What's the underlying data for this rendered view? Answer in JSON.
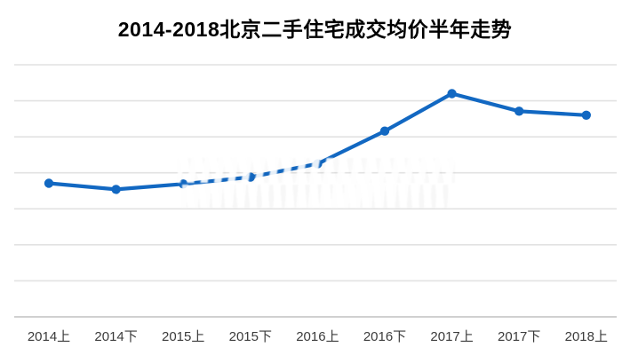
{
  "chart_data": {
    "type": "line",
    "title": "2014-2018北京二手住宅成交均价半年走势",
    "categories": [
      "2014上",
      "2014下",
      "2015上",
      "2015下",
      "2016上",
      "2016下",
      "2017上",
      "2017下",
      "2018上"
    ],
    "series": [
      {
        "name": "",
        "values": [
          3.71,
          3.54,
          3.69,
          3.88,
          4.25,
          5.16,
          6.2,
          5.71,
          5.6
        ]
      }
    ],
    "xlabel": "",
    "ylabel": "",
    "ylim": [
      0,
      7
    ],
    "gridline_step": 1,
    "y_tick_labels_visible": false,
    "grid": "horizontal",
    "legend_position": "none",
    "marker": "circle",
    "note": "No y-axis tick labels are shown in the image; values are estimated in gridline units (1 unit = one horizontal gridline interval above the x-axis)."
  },
  "colors": {
    "line": "#1268C2",
    "marker": "#1268C2",
    "gridline": "#e2e2e2",
    "axis_line": "#c9c9c9",
    "title_text": "#000000",
    "tick_label_text": "#3b3b3b",
    "background": "#ffffff"
  },
  "watermark": {
    "present": true,
    "text_legible": false,
    "lines": 2
  }
}
